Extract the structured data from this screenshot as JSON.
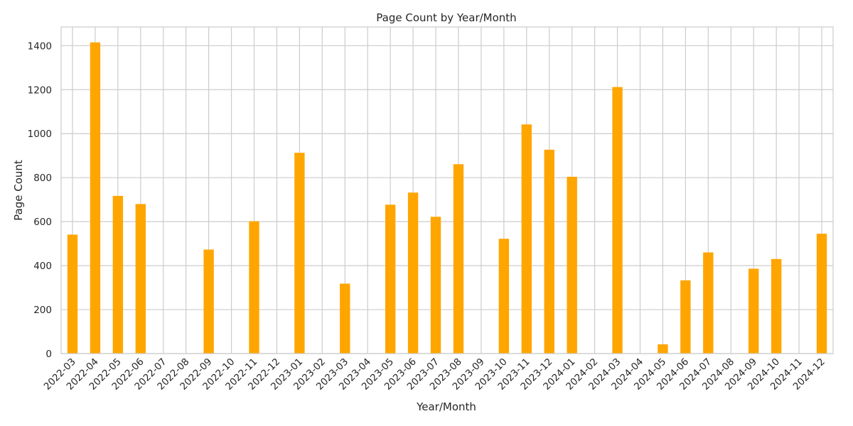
{
  "chart_data": {
    "type": "bar",
    "title": "Page Count by Year/Month",
    "xlabel": "Year/Month",
    "ylabel": "Page Count",
    "categories": [
      "2022-03",
      "2022-04",
      "2022-05",
      "2022-06",
      "2022-07",
      "2022-08",
      "2022-09",
      "2022-10",
      "2022-11",
      "2022-12",
      "2023-01",
      "2023-02",
      "2023-03",
      "2023-04",
      "2023-05",
      "2023-06",
      "2023-07",
      "2023-08",
      "2023-09",
      "2023-10",
      "2023-11",
      "2023-12",
      "2024-01",
      "2024-02",
      "2024-03",
      "2024-04",
      "2024-05",
      "2024-06",
      "2024-07",
      "2024-08",
      "2024-09",
      "2024-10",
      "2024-11",
      "2024-12"
    ],
    "values": [
      541,
      1415,
      717,
      680,
      0,
      0,
      473,
      0,
      602,
      0,
      913,
      0,
      318,
      0,
      677,
      732,
      622,
      861,
      0,
      522,
      1042,
      927,
      804,
      0,
      1212,
      0,
      42,
      333,
      460,
      0,
      386,
      430,
      0,
      545
    ],
    "ylim": [
      0,
      1485
    ],
    "yticks": [
      0,
      200,
      400,
      600,
      800,
      1000,
      1200,
      1400
    ],
    "grid": true,
    "bar_color": "#ffa500",
    "grid_color": "#cccccc",
    "text_color": "#262626"
  }
}
